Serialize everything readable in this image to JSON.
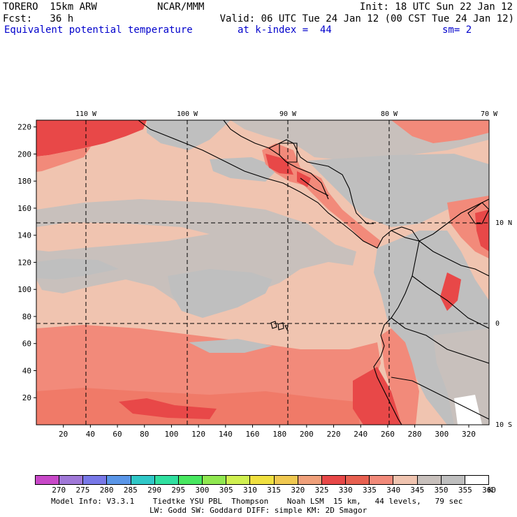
{
  "header": {
    "line1_left": "TORERO  15km ARW",
    "line1_center": "NCAR/MMM",
    "line1_right": "Init: 18 UTC Sun 22 Jan 12",
    "line2_left": "Fcst:   36 h",
    "line2_right": "Valid: 06 UTC Tue 24 Jan 12 (00 CST Tue 24 Jan 12)",
    "field_name": "Equivalent potential temperature",
    "level": "at k-index =  44",
    "smoothing": "sm= 2"
  },
  "map": {
    "x_ticks": [
      "20",
      "40",
      "60",
      "80",
      "100",
      "120",
      "140",
      "160",
      "180",
      "200",
      "220",
      "240",
      "260",
      "280",
      "300",
      "320"
    ],
    "y_ticks": [
      "20",
      "40",
      "60",
      "80",
      "100",
      "120",
      "140",
      "160",
      "180",
      "200",
      "220"
    ],
    "lon_labels": [
      "110 W",
      "100 W",
      "90 W",
      "80 W",
      "70 W"
    ],
    "lat_labels": [
      "10 N",
      "0",
      "10 S"
    ],
    "x_range": [
      0,
      335
    ],
    "y_range": [
      0,
      225
    ],
    "colors": {
      "c320": "#f0a07a",
      "c325": "#f07a68",
      "c330": "#e84848",
      "c335": "#f28a7a",
      "c340": "#f0c4b0",
      "c345": "#c8c0bc",
      "c350": "#bfbfbf",
      "c355": "#ffffff"
    }
  },
  "colorbar": {
    "colors": [
      "#c848c8",
      "#a078d8",
      "#7878e8",
      "#5a96e8",
      "#30c8c8",
      "#30e0a0",
      "#48e860",
      "#90e850",
      "#d0f050",
      "#f0e040",
      "#f0c850",
      "#f0a07a",
      "#e84848",
      "#e86050",
      "#f28a7a",
      "#f0c4b0",
      "#c8c0bc",
      "#bfbfbf",
      "#ffffff"
    ],
    "labels": [
      "270",
      "275",
      "280",
      "285",
      "290",
      "295",
      "300",
      "305",
      "310",
      "315",
      "320",
      "325",
      "330",
      "335",
      "340",
      "345",
      "350",
      "355",
      "360"
    ],
    "unit": "K"
  },
  "footer": {
    "line1": "Model Info: V3.3.1    Tiedtke YSU PBL  Thompson    Noah LSM  15 km,   44 levels,   79 sec",
    "line2": "LW: Godd SW: Goddard DIFF: simple KM: 2D Smagor"
  }
}
